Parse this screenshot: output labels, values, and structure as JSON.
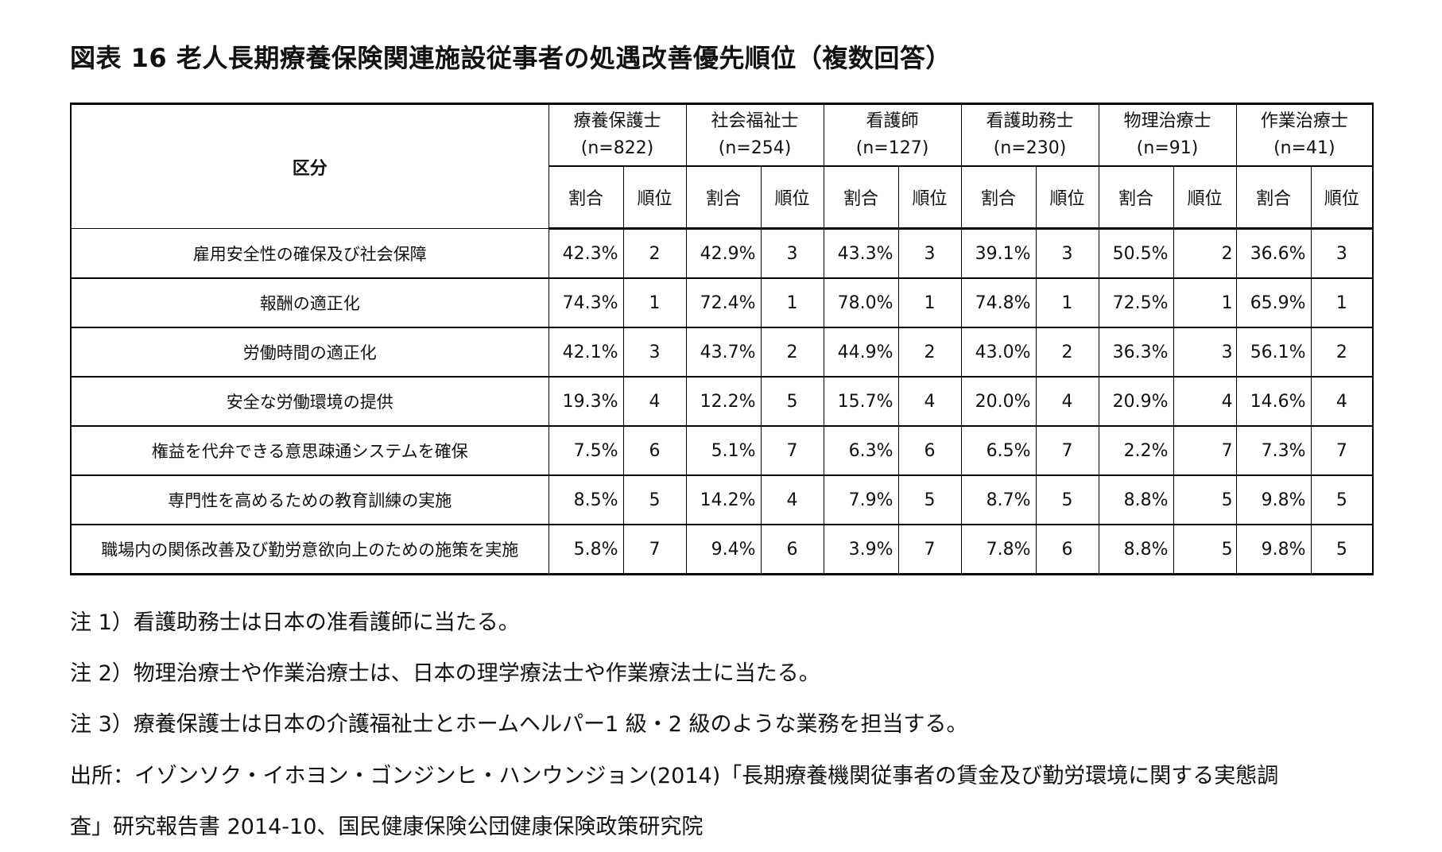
{
  "title": "図表 16 老人長期療養保険関連施設従事者の処遇改善優先順位（複数回答）",
  "table": {
    "label_header": "区分",
    "ratio_label": "割合",
    "rank_label": "順位",
    "groups": [
      {
        "name": "療養保護士",
        "n": "(n=822)"
      },
      {
        "name": "社会福祉士",
        "n": "(n=254)"
      },
      {
        "name": "看護師",
        "n": "(n=127)"
      },
      {
        "name": "看護助務士",
        "n": "(n=230)"
      },
      {
        "name": "物理治療士",
        "n": "(n=91)"
      },
      {
        "name": "作業治療士",
        "n": "(n=41)"
      }
    ],
    "rows": [
      {
        "label": "雇用安全性の確保及び社会保障",
        "cells": [
          [
            "42.3%",
            "2"
          ],
          [
            "42.9%",
            "3"
          ],
          [
            "43.3%",
            "3"
          ],
          [
            "39.1%",
            "3"
          ],
          [
            "50.5%",
            "2"
          ],
          [
            "36.6%",
            "3"
          ]
        ]
      },
      {
        "label": "報酬の適正化",
        "cells": [
          [
            "74.3%",
            "1"
          ],
          [
            "72.4%",
            "1"
          ],
          [
            "78.0%",
            "1"
          ],
          [
            "74.8%",
            "1"
          ],
          [
            "72.5%",
            "1"
          ],
          [
            "65.9%",
            "1"
          ]
        ]
      },
      {
        "label": "労働時間の適正化",
        "cells": [
          [
            "42.1%",
            "3"
          ],
          [
            "43.7%",
            "2"
          ],
          [
            "44.9%",
            "2"
          ],
          [
            "43.0%",
            "2"
          ],
          [
            "36.3%",
            "3"
          ],
          [
            "56.1%",
            "2"
          ]
        ]
      },
      {
        "label": "安全な労働環境の提供",
        "cells": [
          [
            "19.3%",
            "4"
          ],
          [
            "12.2%",
            "5"
          ],
          [
            "15.7%",
            "4"
          ],
          [
            "20.0%",
            "4"
          ],
          [
            "20.9%",
            "4"
          ],
          [
            "14.6%",
            "4"
          ]
        ]
      },
      {
        "label": "権益を代弁できる意思疎通システムを確保",
        "cells": [
          [
            "7.5%",
            "6"
          ],
          [
            "5.1%",
            "7"
          ],
          [
            "6.3%",
            "6"
          ],
          [
            "6.5%",
            "7"
          ],
          [
            "2.2%",
            "7"
          ],
          [
            "7.3%",
            "7"
          ]
        ]
      },
      {
        "label": "専門性を高めるための教育訓練の実施",
        "cells": [
          [
            "8.5%",
            "5"
          ],
          [
            "14.2%",
            "4"
          ],
          [
            "7.9%",
            "5"
          ],
          [
            "8.7%",
            "5"
          ],
          [
            "8.8%",
            "5"
          ],
          [
            "9.8%",
            "5"
          ]
        ]
      },
      {
        "label": "職場内の関係改善及び勤労意欲向上のための施策を実施",
        "cells": [
          [
            "5.8%",
            "7"
          ],
          [
            "9.4%",
            "6"
          ],
          [
            "3.9%",
            "7"
          ],
          [
            "7.8%",
            "6"
          ],
          [
            "8.8%",
            "5"
          ],
          [
            "9.8%",
            "5"
          ]
        ]
      }
    ]
  },
  "notes": [
    "注 1）看護助務士は日本の准看護師に当たる。",
    "注 2）物理治療士や作業治療士は、日本の理学療法士や作業療法士に当たる。",
    "注 3）療養保護士は日本の介護福祉士とホームヘルパー1 級・2 級のような業務を担当する。",
    "出所：イゾンソク・イホヨン・ゴンジンヒ・ハンウンジョン(2014)「長期療養機関従事者の賃金及び勤労環境に関する実態調",
    "査」研究報告書 2014-10、国民健康保険公団健康保険政策研究院"
  ]
}
